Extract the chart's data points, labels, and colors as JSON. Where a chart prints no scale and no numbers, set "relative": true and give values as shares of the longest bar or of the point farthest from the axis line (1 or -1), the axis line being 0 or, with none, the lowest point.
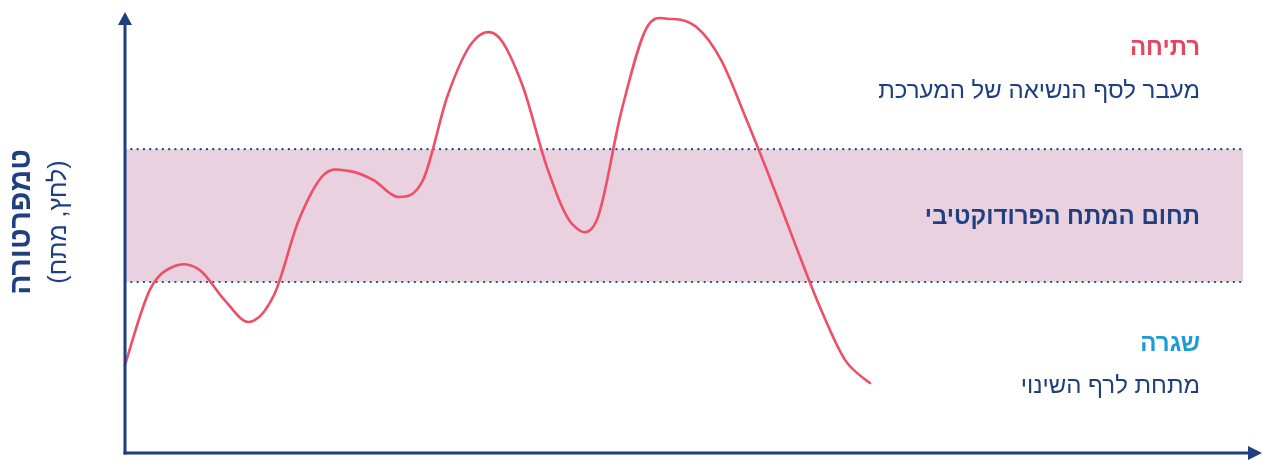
{
  "chart_data": {
    "type": "line",
    "relative": true,
    "color": "#ee4f66",
    "ylabel": "טמפרטורה",
    "categories": [
      null,
      null,
      null,
      null,
      null,
      null,
      null,
      null,
      null,
      null,
      null,
      null,
      null,
      null,
      null,
      null,
      null,
      null,
      null,
      null,
      null,
      null,
      null,
      null,
      null,
      null,
      null,
      null,
      null,
      null,
      null
    ],
    "values": [
      0.203,
      0.376,
      0.431,
      0.422,
      0.353,
      0.302,
      0.364,
      0.537,
      0.641,
      0.65,
      0.629,
      0.59,
      0.629,
      0.825,
      0.947,
      0.961,
      0.848,
      0.657,
      0.528,
      0.537,
      0.79,
      0.979,
      1,
      0.982,
      0.906,
      0.772,
      0.629,
      0.479,
      0.334,
      0.214,
      0.161
    ],
    "bands": [
      {
        "axis": "y",
        "from": 0.394,
        "to": 0.7,
        "label": "תחום המתח הפרודוקטיבי",
        "color": "#e9d1e0"
      }
    ],
    "ref_lines": [
      {
        "axis": "y",
        "value": 0.394,
        "color": "#1f3f80",
        "line_style": "dotted"
      },
      {
        "axis": "y",
        "value": 0.7,
        "color": "#1f3f80",
        "line_style": "dotted"
      }
    ],
    "annotations": [
      "רתיחה",
      "מעבר לסף הנשיאה של המערכת",
      "שגרה",
      "מתחת לרף השינוי",
      "(לחץ, מתח)"
    ]
  }
}
